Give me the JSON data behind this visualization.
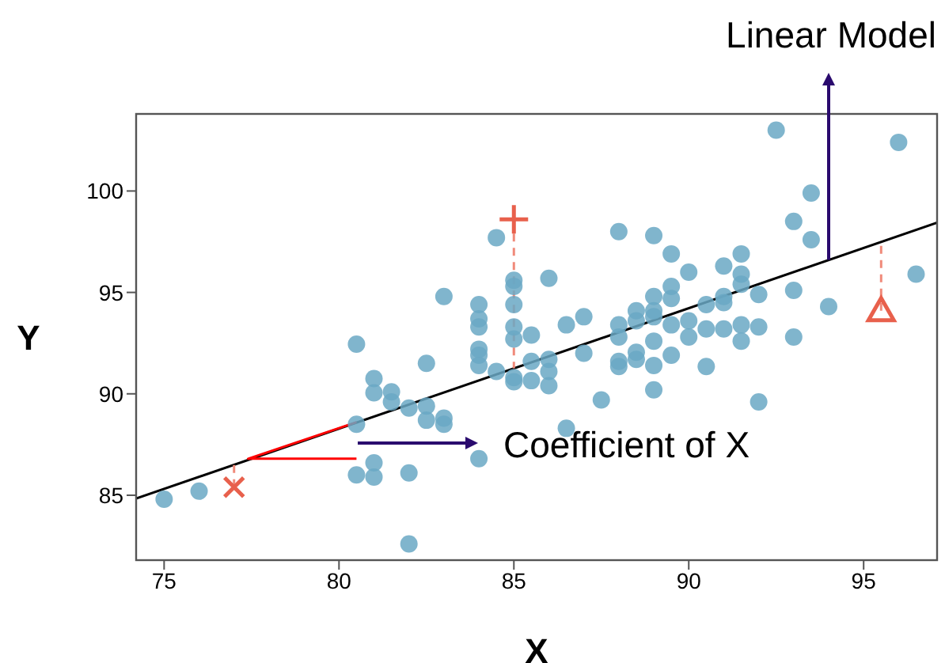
{
  "chart_data": {
    "type": "scatter",
    "xlabel": "X",
    "ylabel": "Y",
    "xlim": [
      74.2,
      97.1
    ],
    "ylim": [
      81.8,
      103.8
    ],
    "xticks": [
      75,
      80,
      85,
      90,
      95
    ],
    "yticks": [
      85,
      90,
      95,
      100
    ],
    "legend": false,
    "annotations": [
      {
        "text": "Linear Model",
        "x": 94,
        "y": 96.6
      },
      "Coefficient of X"
    ],
    "series": [
      {
        "color": "#6aa8c4",
        "marker": "circle",
        "x": [
          75,
          76,
          80.5,
          80.5,
          80.5,
          81,
          81,
          81,
          81,
          81.5,
          81.5,
          82,
          82,
          82,
          82.5,
          82.5,
          82.5,
          83,
          83,
          83,
          84,
          84,
          84,
          84,
          84,
          84,
          84,
          84.5,
          84.5,
          85,
          85,
          85,
          85,
          85,
          85,
          85,
          85.5,
          85.5,
          85.5,
          86,
          86,
          86,
          86,
          86.5,
          86.5,
          87,
          87,
          87.5,
          88,
          88,
          88,
          88,
          88,
          88.5,
          88.5,
          88.5,
          88.5,
          89,
          89,
          89,
          89,
          89,
          89,
          89,
          89.5,
          89.5,
          89.5,
          89.5,
          89.5,
          90,
          90,
          90,
          90.5,
          90.5,
          90.5,
          91,
          91,
          91,
          91,
          91.5,
          91.5,
          91.5,
          91.5,
          91.5,
          92,
          92,
          92,
          92.5,
          93,
          93,
          93,
          93.5,
          93.5,
          94,
          96,
          96.5
        ],
        "values": [
          84.8,
          85.2,
          92.45,
          88.5,
          86.0,
          90.75,
          90.05,
          86.6,
          85.9,
          90.1,
          89.6,
          89.3,
          86.1,
          82.6,
          91.5,
          89.4,
          88.7,
          94.8,
          88.8,
          88.5,
          94.4,
          93.7,
          93.3,
          92.2,
          91.9,
          91.4,
          86.8,
          97.7,
          91.1,
          95.6,
          95.3,
          94.4,
          93.3,
          92.7,
          90.8,
          90.6,
          92.9,
          91.6,
          90.65,
          95.7,
          91.7,
          91.1,
          90.4,
          93.4,
          88.3,
          93.8,
          92.0,
          89.7,
          98.0,
          93.4,
          92.8,
          91.6,
          91.35,
          94.1,
          93.6,
          92.05,
          91.7,
          97.8,
          94.8,
          94.1,
          93.8,
          92.6,
          91.4,
          90.2,
          96.9,
          95.3,
          94.7,
          93.4,
          91.9,
          96.0,
          93.6,
          92.8,
          94.4,
          93.2,
          91.35,
          96.3,
          94.8,
          94.5,
          93.2,
          96.9,
          95.9,
          95.4,
          93.4,
          92.6,
          94.9,
          93.3,
          89.6,
          103.0,
          98.5,
          95.1,
          92.8,
          97.6,
          99.9,
          94.3,
          102.4,
          95.9
        ]
      },
      {
        "type": "line",
        "color": "#000000",
        "marker": "none",
        "x": [
          74.2,
          97.1
        ],
        "values": [
          84.84,
          98.44
        ]
      },
      {
        "type": "line",
        "color": "#ff0000",
        "marker": "none",
        "x": [
          80.5,
          77.4,
          80.5
        ],
        "values": [
          88.6,
          86.8,
          86.8
        ]
      },
      {
        "type": "line",
        "color": "#f08a7a",
        "marker": "none",
        "line_style": "dashed",
        "x": [
          85,
          85
        ],
        "values": [
          98.6,
          91.26
        ]
      },
      {
        "type": "line",
        "color": "#f08a7a",
        "marker": "none",
        "line_style": "dashed",
        "x": [
          77,
          77
        ],
        "values": [
          85.4,
          86.51
        ]
      },
      {
        "type": "line",
        "color": "#f08a7a",
        "marker": "none",
        "line_style": "dashed",
        "x": [
          95.5,
          95.5
        ],
        "values": [
          94.1,
          97.5
        ]
      },
      {
        "color": "#e8604c",
        "marker": "plus",
        "x": [
          85
        ],
        "values": [
          98.6
        ]
      },
      {
        "color": "#e8604c",
        "marker": "cross",
        "x": [
          77
        ],
        "values": [
          85.4
        ]
      },
      {
        "color": "#e8604c",
        "marker": "triangle",
        "x": [
          95.5
        ],
        "values": [
          94.1
        ]
      }
    ]
  }
}
